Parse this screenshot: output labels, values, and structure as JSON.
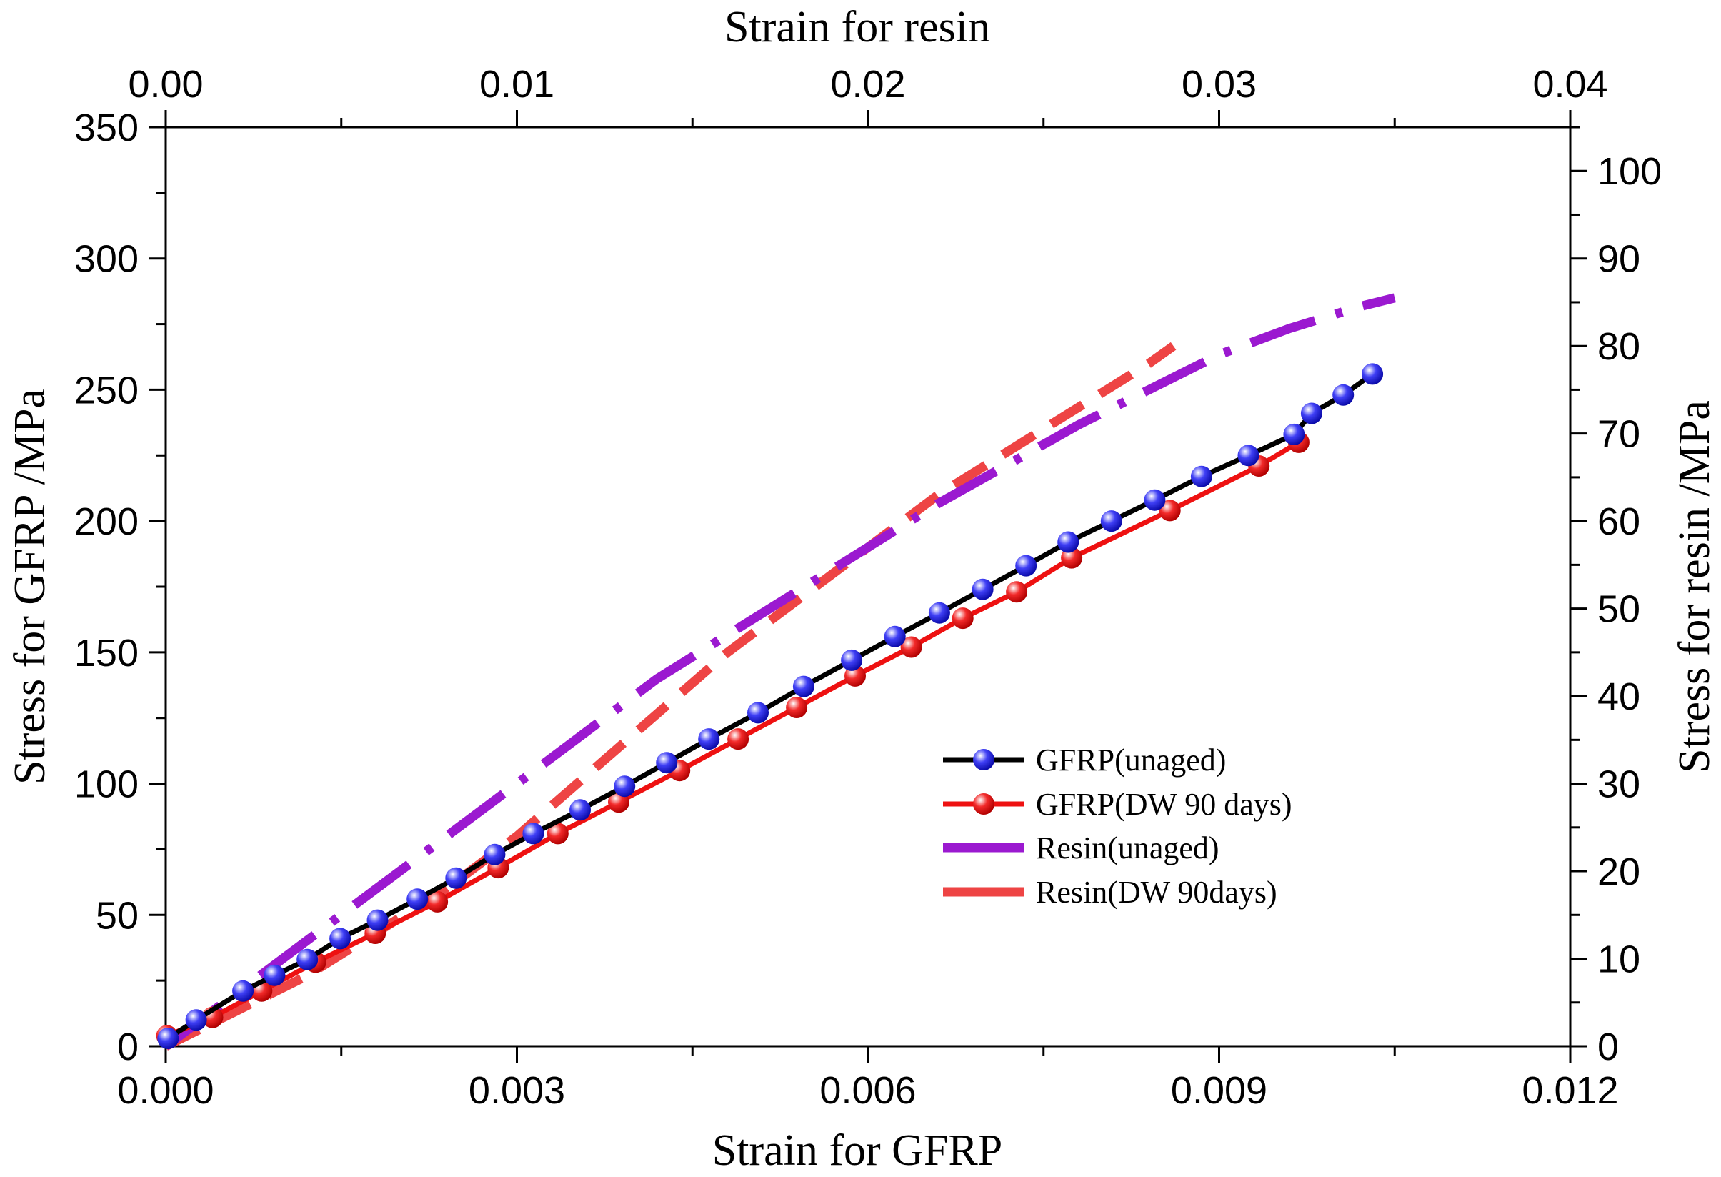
{
  "chart_data": {
    "type": "line",
    "axes": {
      "bottom": {
        "label": "Strain for GFRP",
        "range": [
          0,
          0.012
        ],
        "ticks": [
          "0.000",
          "0.003",
          "0.006",
          "0.009",
          "0.012"
        ]
      },
      "top": {
        "label": "Strain for resin",
        "range": [
          0,
          0.04
        ],
        "ticks": [
          "0.00",
          "0.01",
          "0.02",
          "0.03",
          "0.04"
        ]
      },
      "left": {
        "label": "Stress for GFRP /MPa",
        "range": [
          0,
          350
        ],
        "ticks": [
          "0",
          "50",
          "100",
          "150",
          "200",
          "250",
          "300",
          "350"
        ]
      },
      "right": {
        "label": "Stress for resin /MPa",
        "range": [
          0,
          105
        ],
        "ticks": [
          "0",
          "10",
          "20",
          "30",
          "40",
          "50",
          "60",
          "70",
          "80",
          "90",
          "100"
        ]
      }
    },
    "colors": {
      "gfrp_unaged_line": "#000000",
      "gfrp_unaged_marker": "#1a1aee",
      "gfrp_dw_line": "#ee1111",
      "gfrp_dw_marker": "#ee1111",
      "resin_unaged": "#9b19d0",
      "resin_dw": "#ee4444"
    },
    "series": [
      {
        "name": "GFRP(unaged)",
        "axes": "bottom-left",
        "style": "line-marker",
        "x": [
          2e-05,
          0.00026,
          0.00066,
          0.00093,
          0.00121,
          0.00149,
          0.00181,
          0.00215,
          0.00248,
          0.00281,
          0.00314,
          0.00354,
          0.00392,
          0.00428,
          0.00464,
          0.00506,
          0.00545,
          0.00586,
          0.00623,
          0.00661,
          0.00698,
          0.00735,
          0.00771,
          0.00808,
          0.00845,
          0.00885,
          0.00925,
          0.00964,
          0.00979,
          0.01006,
          0.01031
        ],
        "y": [
          3,
          10,
          21,
          27,
          33,
          41,
          48,
          56,
          64,
          73,
          81,
          90,
          99,
          108,
          117,
          127,
          137,
          147,
          156,
          165,
          174,
          183,
          192,
          200,
          208,
          217,
          225,
          233,
          241,
          248,
          256
        ]
      },
      {
        "name": "GFRP(DW 90 days)",
        "axes": "bottom-left",
        "style": "line-marker",
        "x": [
          1e-05,
          0.0004,
          0.00082,
          0.00128,
          0.00179,
          0.00232,
          0.00284,
          0.00335,
          0.00387,
          0.00439,
          0.00489,
          0.00539,
          0.00589,
          0.00637,
          0.00681,
          0.00727,
          0.00774,
          0.00858,
          0.00934,
          0.00968
        ],
        "y": [
          4,
          11,
          21,
          32,
          43,
          55,
          68,
          81,
          93,
          105,
          117,
          129,
          141,
          152,
          163,
          173,
          186,
          204,
          221,
          230
        ]
      },
      {
        "name": "Resin(unaged)",
        "axes": "top-right",
        "style": "dash-dot",
        "x": [
          0,
          0.002,
          0.004,
          0.006,
          0.008,
          0.01,
          0.012,
          0.014,
          0.016,
          0.018,
          0.02,
          0.022,
          0.024,
          0.026,
          0.028,
          0.03,
          0.032,
          0.034,
          0.035
        ],
        "y": [
          0,
          6,
          12,
          18,
          24,
          30,
          36,
          42,
          47,
          52,
          57,
          62,
          66.5,
          71,
          75,
          79,
          82,
          84.5,
          85.5
        ]
      },
      {
        "name": "Resin(DW 90days)",
        "axes": "top-right",
        "style": "dash",
        "x": [
          0,
          0.002,
          0.004,
          0.006,
          0.008,
          0.01,
          0.012,
          0.014,
          0.016,
          0.018,
          0.02,
          0.022,
          0.024,
          0.026,
          0.028,
          0.0287
        ],
        "y": [
          0,
          4,
          8,
          13,
          18,
          24,
          31,
          38,
          45,
          51,
          57,
          63,
          68,
          73,
          78,
          80
        ]
      }
    ],
    "legend": {
      "position": "center-right",
      "entries": [
        "GFRP(unaged)",
        "GFRP(DW 90 days)",
        "Resin(unaged)",
        "Resin(DW 90days)"
      ]
    }
  }
}
